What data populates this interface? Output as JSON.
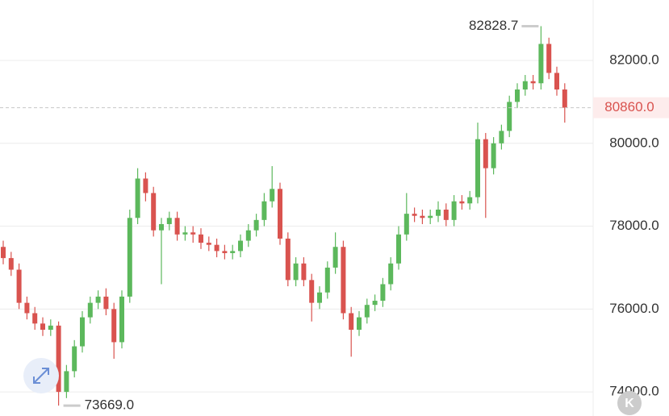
{
  "chart_data": {
    "type": "candlestick",
    "ylim": [
      73418,
      83460
    ],
    "yticks": [
      {
        "value": 82000,
        "label": "82000.0"
      },
      {
        "value": 80000,
        "label": "80000.0"
      },
      {
        "value": 78000,
        "label": "78000.0"
      },
      {
        "value": 76000,
        "label": "76000.0"
      },
      {
        "value": 74000,
        "label": "74000.0"
      }
    ],
    "grid": true,
    "up_color": "#5cb85c",
    "down_color": "#d9534f",
    "open": [
      77500,
      77230,
      76950,
      76150,
      75900,
      75650,
      75500,
      75600,
      74000,
      74500,
      75100,
      75800,
      76150,
      76300,
      76000,
      75200,
      76300,
      78200,
      79150,
      78800,
      77900,
      78050,
      78200,
      77800,
      77850,
      77800,
      77600,
      77550,
      77400,
      77350,
      77400,
      77650,
      77900,
      78150,
      78600,
      78900,
      77700,
      76700,
      77100,
      76700,
      76150,
      76400,
      77000,
      77500,
      75900,
      75500,
      75800,
      76100,
      76200,
      76600,
      77100,
      77800,
      78300,
      78250,
      78200,
      78250,
      78400,
      78150,
      78600,
      78550,
      78700,
      80100,
      79400,
      80000,
      80300,
      81000,
      81300,
      81500,
      81450,
      82400,
      81700,
      81300
    ],
    "high": [
      77650,
      77380,
      77100,
      76300,
      76050,
      75800,
      75750,
      75700,
      74650,
      75250,
      75950,
      76300,
      76450,
      76500,
      76150,
      76450,
      78400,
      79400,
      79300,
      78950,
      78200,
      78350,
      78350,
      78000,
      78000,
      77950,
      77750,
      77700,
      77550,
      77550,
      77800,
      78050,
      78300,
      78800,
      79450,
      79050,
      77850,
      77250,
      77250,
      76850,
      76550,
      77150,
      77850,
      77650,
      76050,
      75950,
      76250,
      76350,
      76750,
      77250,
      78000,
      78800,
      78450,
      78400,
      78400,
      78600,
      78550,
      78750,
      78750,
      78850,
      80500,
      80250,
      80150,
      80450,
      81150,
      81450,
      81650,
      81650,
      82828.7,
      82550,
      81850,
      81450
    ],
    "low": [
      77080,
      76800,
      76000,
      75750,
      75500,
      75350,
      75350,
      73669,
      73850,
      74350,
      74950,
      75650,
      76000,
      75850,
      74800,
      75050,
      76150,
      78050,
      78600,
      77750,
      76600,
      77900,
      77650,
      77650,
      77600,
      77450,
      77400,
      77250,
      77200,
      77200,
      77250,
      77500,
      77750,
      78000,
      78450,
      77550,
      76550,
      76550,
      76550,
      75700,
      76000,
      76250,
      76850,
      75750,
      74850,
      75350,
      75650,
      75950,
      76050,
      76450,
      76950,
      77650,
      78100,
      78050,
      78050,
      78100,
      78000,
      78000,
      78400,
      78400,
      78550,
      78200,
      79250,
      79850,
      80150,
      80850,
      81150,
      81300,
      81300,
      81550,
      81150,
      80500
    ],
    "close": [
      77230,
      76950,
      76150,
      75900,
      75650,
      75500,
      75600,
      74000,
      74500,
      75100,
      75800,
      76150,
      76300,
      76000,
      75200,
      76300,
      78200,
      79150,
      78800,
      77900,
      78050,
      78200,
      77800,
      77850,
      77800,
      77600,
      77550,
      77400,
      77350,
      77400,
      77650,
      77900,
      78150,
      78600,
      78900,
      77700,
      76700,
      77100,
      76700,
      76150,
      76400,
      77000,
      77500,
      75900,
      75500,
      75800,
      76100,
      76200,
      76600,
      77100,
      77800,
      78300,
      78250,
      78200,
      78250,
      78400,
      78150,
      78600,
      78550,
      78700,
      80100,
      79400,
      80000,
      80300,
      81000,
      81300,
      81500,
      81450,
      82400,
      81700,
      81300,
      80860
    ],
    "max_label": "82828.7",
    "min_label": "73669.0",
    "last_price_label": "80860.0"
  }
}
